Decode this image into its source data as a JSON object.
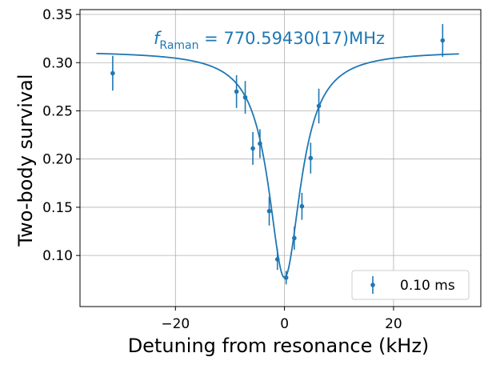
{
  "chart_data": {
    "type": "scatter",
    "xlabel": "Detuning from resonance (kHz)",
    "ylabel": "Two-body survival",
    "xlim": [
      -37.5,
      36
    ],
    "ylim": [
      0.047,
      0.355
    ],
    "xticks": [
      -20,
      0,
      20
    ],
    "xtick_labels": [
      "−20",
      "0",
      "20"
    ],
    "yticks": [
      0.1,
      0.15,
      0.2,
      0.25,
      0.3,
      0.35
    ],
    "ytick_labels": [
      "0.10",
      "0.15",
      "0.20",
      "0.25",
      "0.30",
      "0.35"
    ],
    "grid": true,
    "legend_position": "lower-right",
    "color": "#1f77b4",
    "annotation": {
      "symbol": "f",
      "subscript": "Raman",
      "equals": " = ",
      "value": "770.59430(17)MHz"
    },
    "series": [
      {
        "name": "0.10 ms",
        "kind": "errorbar",
        "x": [
          -31.5,
          -8.8,
          -7.2,
          -5.8,
          -4.5,
          -2.8,
          -1.3,
          0.3,
          1.8,
          3.2,
          4.8,
          6.3,
          29
        ],
        "y": [
          0.289,
          0.27,
          0.264,
          0.211,
          0.216,
          0.146,
          0.096,
          0.077,
          0.118,
          0.151,
          0.201,
          0.255,
          0.323
        ],
        "yerr": [
          0.018,
          0.017,
          0.017,
          0.017,
          0.015,
          0.015,
          0.011,
          0.007,
          0.012,
          0.014,
          0.016,
          0.018,
          0.017
        ]
      }
    ],
    "fit": {
      "model": "lorentzian_dip",
      "baseline": 0.312,
      "depth": 0.235,
      "center": 0.0,
      "hwhm": 3.6,
      "x_range": [
        -34.5,
        32
      ]
    }
  }
}
